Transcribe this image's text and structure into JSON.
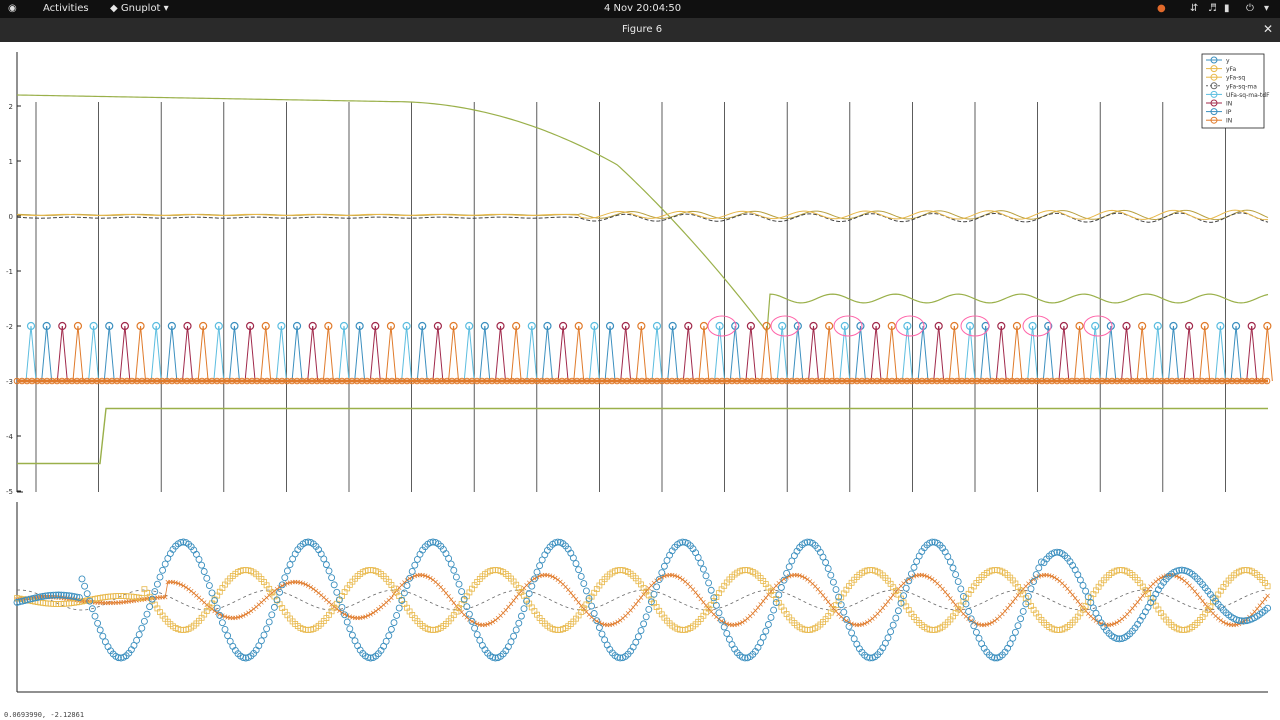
{
  "topbar": {
    "activities": "Activities",
    "app_name": "Gnuplot",
    "clock": "4 Nov  20:04:50"
  },
  "window": {
    "title": "Figure 6"
  },
  "status": {
    "coords": "0.0693990, -2.12861"
  },
  "colors": {
    "blue": "#3b8fbf",
    "lightblue": "#5bbde0",
    "darkred": "#a0284a",
    "orange": "#e07a2a",
    "yellow": "#e8b84a",
    "olive": "#9ab04a",
    "darkgray": "#555555",
    "pink": "#ff66aa"
  },
  "chart_data": [
    {
      "type": "line",
      "title": "",
      "xlabel": "",
      "ylabel": "",
      "yticks": [
        "2",
        "1",
        "0",
        "-1",
        "-2",
        "-3",
        "-4",
        "-5"
      ],
      "ylim": [
        -5,
        2.4
      ],
      "grid": "vertical lines",
      "legend": {
        "placement": "top-right",
        "entries": [
          "y",
          "yFa",
          "yFa-sq",
          "yFa-sq-ma",
          "UFa-sq-ma-tdF",
          "IN",
          "IP",
          "IN"
        ]
      },
      "series": [
        {
          "description": "olive decaying curve",
          "values": [
            2.2,
            2.2,
            2.15,
            2.1,
            2.0,
            1.6,
            0.3,
            -1.2,
            -1.5,
            -1.55,
            -1.5
          ]
        },
        {
          "description": "stem markers alternating colors at level",
          "values": [
            -2.0
          ]
        },
        {
          "description": "baseline markers",
          "values": [
            -3.0
          ]
        },
        {
          "description": "step line",
          "values": [
            -4.5,
            -3.5
          ]
        }
      ]
    },
    {
      "type": "line",
      "title": "",
      "series": [
        {
          "description": "blue circles sinusoid"
        },
        {
          "description": "yellow squares sinusoid"
        },
        {
          "description": "orange crosses sinusoid"
        },
        {
          "description": "gray dashed sinusoid"
        }
      ]
    }
  ]
}
